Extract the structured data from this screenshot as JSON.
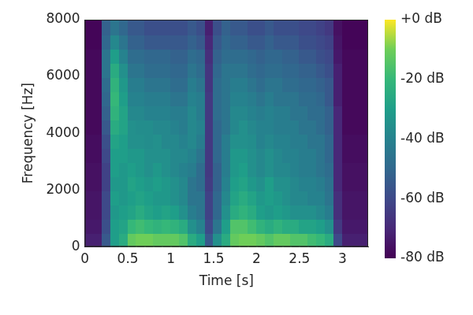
{
  "chart_data": {
    "type": "heatmap",
    "x_label": "Time [s]",
    "y_label": "Frequency [Hz]",
    "xlim": [
      0,
      3.3
    ],
    "xticks": [
      0,
      0.5,
      1,
      1.5,
      2,
      2.5,
      3
    ],
    "ylim": [
      0,
      8000
    ],
    "yticks": [
      0,
      2000,
      4000,
      6000,
      8000
    ],
    "grid": false,
    "x_bins": [
      0,
      0.1,
      0.2,
      0.3,
      0.4,
      0.5,
      0.6,
      0.7,
      0.8,
      0.9,
      1.0,
      1.1,
      1.2,
      1.3,
      1.4,
      1.5,
      1.6,
      1.7,
      1.8,
      1.9,
      2.0,
      2.1,
      2.2,
      2.3,
      2.4,
      2.5,
      2.6,
      2.7,
      2.8,
      2.9,
      3.0,
      3.1,
      3.2,
      3.3
    ],
    "y_bins": [
      0,
      500,
      1000,
      1500,
      2000,
      2500,
      3000,
      3500,
      4000,
      4500,
      5000,
      5500,
      6000,
      6500,
      7000,
      7500,
      8000
    ],
    "cells": [
      [
        -72,
        -72,
        -55,
        -30,
        -25,
        -12,
        -10,
        -10,
        -12,
        -12,
        -12,
        -15,
        -25,
        -30,
        -55,
        -35,
        -25,
        -12,
        -10,
        -10,
        -12,
        -15,
        -12,
        -12,
        -15,
        -15,
        -18,
        -20,
        -25,
        -60,
        -72,
        -72,
        -72
      ],
      [
        -74,
        -74,
        -58,
        -30,
        -28,
        -20,
        -18,
        -20,
        -22,
        -20,
        -22,
        -25,
        -35,
        -40,
        -60,
        -45,
        -30,
        -15,
        -15,
        -18,
        -22,
        -25,
        -22,
        -25,
        -25,
        -28,
        -28,
        -30,
        -35,
        -65,
        -74,
        -74,
        -74
      ],
      [
        -75,
        -75,
        -60,
        -32,
        -30,
        -28,
        -25,
        -28,
        -30,
        -28,
        -30,
        -35,
        -42,
        -45,
        -62,
        -50,
        -35,
        -25,
        -22,
        -25,
        -30,
        -32,
        -30,
        -32,
        -35,
        -35,
        -35,
        -38,
        -42,
        -68,
        -75,
        -75,
        -75
      ],
      [
        -75,
        -75,
        -60,
        -30,
        -32,
        -30,
        -28,
        -30,
        -32,
        -32,
        -35,
        -38,
        -45,
        -45,
        -62,
        -50,
        -38,
        -28,
        -25,
        -28,
        -32,
        -30,
        -32,
        -35,
        -38,
        -38,
        -40,
        -40,
        -45,
        -68,
        -75,
        -75,
        -75
      ],
      [
        -76,
        -76,
        -62,
        -32,
        -32,
        -28,
        -30,
        -32,
        -30,
        -32,
        -35,
        -38,
        -45,
        -48,
        -64,
        -52,
        -40,
        -30,
        -28,
        -32,
        -35,
        -30,
        -35,
        -35,
        -38,
        -40,
        -40,
        -42,
        -46,
        -70,
        -76,
        -76,
        -76
      ],
      [
        -76,
        -76,
        -62,
        -30,
        -32,
        -30,
        -32,
        -35,
        -32,
        -35,
        -38,
        -40,
        -42,
        -48,
        -65,
        -52,
        -42,
        -32,
        -30,
        -35,
        -38,
        -35,
        -38,
        -38,
        -40,
        -42,
        -42,
        -45,
        -48,
        -70,
        -76,
        -76,
        -76
      ],
      [
        -77,
        -77,
        -60,
        -30,
        -30,
        -32,
        -32,
        -35,
        -35,
        -35,
        -38,
        -38,
        -40,
        -45,
        -65,
        -50,
        -42,
        -32,
        -32,
        -35,
        -38,
        -35,
        -38,
        -40,
        -40,
        -42,
        -42,
        -45,
        -50,
        -70,
        -77,
        -77,
        -77
      ],
      [
        -77,
        -77,
        -58,
        -28,
        -30,
        -35,
        -35,
        -36,
        -35,
        -38,
        -38,
        -40,
        -38,
        -42,
        -65,
        -50,
        -42,
        -35,
        -35,
        -36,
        -40,
        -38,
        -40,
        -40,
        -42,
        -42,
        -45,
        -45,
        -50,
        -70,
        -77,
        -77,
        -77
      ],
      [
        -78,
        -78,
        -55,
        -25,
        -28,
        -35,
        -36,
        -36,
        -38,
        -38,
        -40,
        -42,
        -38,
        -40,
        -65,
        -50,
        -45,
        -38,
        -35,
        -38,
        -40,
        -40,
        -42,
        -42,
        -42,
        -45,
        -45,
        -48,
        -52,
        -70,
        -78,
        -78,
        -78
      ],
      [
        -78,
        -78,
        -52,
        -22,
        -28,
        -38,
        -38,
        -40,
        -40,
        -40,
        -42,
        -42,
        -38,
        -42,
        -65,
        -48,
        -45,
        -38,
        -38,
        -40,
        -42,
        -40,
        -42,
        -42,
        -45,
        -45,
        -48,
        -48,
        -52,
        -70,
        -78,
        -78,
        -78
      ],
      [
        -78,
        -78,
        -50,
        -20,
        -30,
        -40,
        -40,
        -42,
        -42,
        -42,
        -45,
        -45,
        -40,
        -42,
        -65,
        -48,
        -45,
        -40,
        -40,
        -42,
        -45,
        -42,
        -45,
        -45,
        -45,
        -48,
        -48,
        -50,
        -55,
        -72,
        -78,
        -78,
        -78
      ],
      [
        -78,
        -78,
        -48,
        -22,
        -32,
        -42,
        -42,
        -45,
        -45,
        -45,
        -48,
        -48,
        -42,
        -45,
        -66,
        -48,
        -45,
        -42,
        -42,
        -45,
        -48,
        -45,
        -45,
        -48,
        -48,
        -50,
        -50,
        -52,
        -55,
        -72,
        -78,
        -78,
        -78
      ],
      [
        -78,
        -78,
        -45,
        -25,
        -35,
        -45,
        -45,
        -48,
        -48,
        -48,
        -50,
        -50,
        -45,
        -48,
        -66,
        -50,
        -45,
        -45,
        -45,
        -48,
        -50,
        -48,
        -48,
        -50,
        -50,
        -52,
        -52,
        -55,
        -58,
        -72,
        -78,
        -78,
        -78
      ],
      [
        -78,
        -78,
        -45,
        -30,
        -40,
        -48,
        -48,
        -50,
        -50,
        -50,
        -52,
        -52,
        -48,
        -50,
        -68,
        -52,
        -48,
        -48,
        -48,
        -50,
        -52,
        -50,
        -50,
        -52,
        -52,
        -55,
        -55,
        -58,
        -60,
        -74,
        -78,
        -78,
        -78
      ],
      [
        -79,
        -79,
        -50,
        -38,
        -45,
        -52,
        -52,
        -55,
        -55,
        -55,
        -55,
        -55,
        -52,
        -55,
        -70,
        -55,
        -50,
        -52,
        -52,
        -55,
        -55,
        -52,
        -55,
        -55,
        -55,
        -58,
        -58,
        -60,
        -62,
        -75,
        -79,
        -79,
        -79
      ],
      [
        -79,
        -79,
        -52,
        -45,
        -50,
        -55,
        -55,
        -58,
        -58,
        -58,
        -58,
        -58,
        -55,
        -58,
        -72,
        -58,
        -52,
        -55,
        -55,
        -58,
        -58,
        -55,
        -58,
        -58,
        -58,
        -60,
        -60,
        -62,
        -65,
        -76,
        -79,
        -79,
        -79
      ]
    ],
    "color_range": [
      -80,
      0
    ],
    "color_ticks": [
      {
        "value": -80,
        "label": "-80 dB"
      },
      {
        "value": -60,
        "label": "-60 dB"
      },
      {
        "value": -40,
        "label": "-40 dB"
      },
      {
        "value": -20,
        "label": "-20 dB"
      },
      {
        "value": 0,
        "label": "+0 dB"
      }
    ]
  }
}
